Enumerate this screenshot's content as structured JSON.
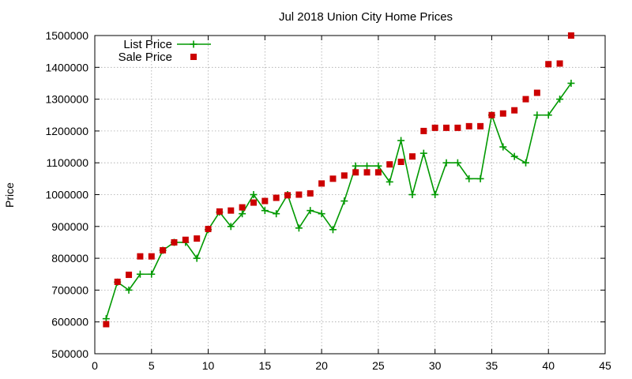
{
  "chart_data": {
    "type": "line",
    "title": "Jul 2018 Union City Home Prices",
    "xlabel": "",
    "ylabel": "Price",
    "xlim": [
      0,
      45
    ],
    "ylim": [
      500000,
      1500000
    ],
    "x_ticks": [
      0,
      5,
      10,
      15,
      20,
      25,
      30,
      35,
      40,
      45
    ],
    "y_ticks": [
      500000,
      600000,
      700000,
      800000,
      900000,
      1000000,
      1100000,
      1200000,
      1300000,
      1400000,
      1500000
    ],
    "grid": true,
    "legend_position": "top-left",
    "series": [
      {
        "name": "List Price",
        "style": "line-points",
        "marker": "plus",
        "color": "#009900",
        "x": [
          1,
          2,
          3,
          4,
          5,
          6,
          7,
          8,
          9,
          10,
          11,
          12,
          13,
          14,
          15,
          16,
          17,
          18,
          19,
          20,
          21,
          22,
          23,
          24,
          25,
          26,
          27,
          28,
          29,
          30,
          31,
          32,
          33,
          34,
          35,
          36,
          37,
          38,
          39,
          40,
          41,
          42
        ],
        "y": [
          610000,
          725000,
          700000,
          750000,
          750000,
          825000,
          850000,
          850000,
          800000,
          890000,
          945000,
          900000,
          940000,
          1000000,
          950000,
          940000,
          1000000,
          895000,
          950000,
          940000,
          890000,
          980000,
          1090000,
          1090000,
          1090000,
          1040000,
          1170000,
          1000000,
          1130000,
          1000000,
          1100000,
          1100000,
          1050000,
          1050000,
          1250000,
          1150000,
          1120000,
          1100000,
          1250000,
          1250000,
          1300000,
          1350000
        ]
      },
      {
        "name": "Sale Price",
        "style": "points",
        "marker": "square",
        "color": "#cc0000",
        "x": [
          1,
          2,
          3,
          4,
          5,
          6,
          7,
          8,
          9,
          10,
          11,
          12,
          13,
          14,
          15,
          16,
          17,
          18,
          19,
          20,
          21,
          22,
          23,
          24,
          25,
          26,
          27,
          28,
          29,
          30,
          31,
          32,
          33,
          34,
          35,
          36,
          37,
          38,
          39,
          40,
          41,
          42
        ],
        "y": [
          593000,
          726000,
          748000,
          806000,
          806000,
          825000,
          850000,
          858000,
          862000,
          892000,
          947000,
          950000,
          960000,
          975000,
          980000,
          990000,
          998000,
          1000000,
          1004000,
          1035000,
          1050000,
          1060000,
          1070000,
          1070000,
          1070000,
          1095000,
          1103000,
          1120000,
          1200000,
          1210000,
          1210000,
          1210000,
          1215000,
          1215000,
          1250000,
          1255000,
          1265000,
          1300000,
          1320000,
          1410000,
          1412000,
          1500000
        ]
      }
    ]
  }
}
